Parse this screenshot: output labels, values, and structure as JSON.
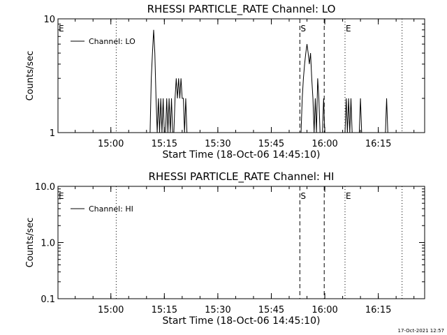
{
  "footer": {
    "timestamp": "17-Oct-2021 12:57"
  },
  "chart_data": [
    {
      "type": "line",
      "title": "RHESSI PARTICLE_RATE Channel: LO",
      "xlabel": "Start Time (18-Oct-06 14:45:10)",
      "ylabel": "Counts/sec",
      "y_scale": "log",
      "ylim": [
        1,
        10
      ],
      "xlim": [
        "14:45:10",
        "16:28:00"
      ],
      "x_ticks": [
        "15:00",
        "15:15",
        "15:30",
        "15:45",
        "16:00",
        "16:15"
      ],
      "y_ticks": [
        "1",
        "10"
      ],
      "legend": {
        "position": "top-left",
        "entries": [
          "Channel: LO"
        ]
      },
      "markers": [
        {
          "label": "E",
          "time": "14:45:10",
          "style": "none"
        },
        {
          "label": "",
          "time": "15:01:30",
          "style": "dotted"
        },
        {
          "label": "S",
          "time": "15:53:00",
          "style": "dashed"
        },
        {
          "label": "",
          "time": "15:59:50",
          "style": "dashed"
        },
        {
          "label": "E",
          "time": "16:05:40",
          "style": "dotted"
        },
        {
          "label": "",
          "time": "16:21:40",
          "style": "dotted"
        }
      ],
      "series": [
        {
          "name": "Channel: LO",
          "x": [
            "15:11:00",
            "15:11:20",
            "15:11:40",
            "15:12:00",
            "15:12:20",
            "15:12:40",
            "15:13:00",
            "15:13:20",
            "15:13:40",
            "15:14:00",
            "15:14:20",
            "15:14:40",
            "15:15:00",
            "15:15:20",
            "15:15:40",
            "15:16:00",
            "15:16:20",
            "15:16:40",
            "15:17:00",
            "15:17:20",
            "15:17:40",
            "15:18:00",
            "15:18:20",
            "15:18:40",
            "15:19:00",
            "15:19:20",
            "15:19:40",
            "15:20:00",
            "15:20:20",
            "15:20:40",
            "15:21:00",
            "15:21:20",
            "15:21:40",
            "15:22:00",
            "15:53:20",
            "15:53:40",
            "15:54:00",
            "15:54:20",
            "15:54:40",
            "15:55:00",
            "15:55:20",
            "15:55:40",
            "15:56:00",
            "15:56:20",
            "15:56:40",
            "15:57:00",
            "15:57:20",
            "15:57:40",
            "15:58:00",
            "15:58:20",
            "15:58:40",
            "15:59:00",
            "15:59:20",
            "15:59:40",
            "16:00:00",
            "16:00:20",
            "16:05:40",
            "16:06:00",
            "16:06:20",
            "16:06:40",
            "16:07:00",
            "16:07:20",
            "16:07:40",
            "16:08:00",
            "16:09:40",
            "16:10:00",
            "16:10:20",
            "16:10:40",
            "16:17:00",
            "16:17:20",
            "16:17:40",
            "16:18:00"
          ],
          "y": [
            1,
            3,
            5,
            8,
            5,
            2,
            1,
            2,
            1,
            2,
            1,
            2,
            1,
            1,
            2,
            1,
            2,
            1,
            2,
            1,
            1,
            2,
            3,
            2,
            3,
            2,
            3,
            2,
            2,
            1,
            2,
            1,
            1,
            1,
            1,
            2,
            3,
            4,
            5,
            6,
            5,
            4,
            5,
            3,
            2,
            1,
            2,
            1,
            3,
            2,
            1,
            1,
            1,
            2,
            1,
            1,
            1,
            2,
            1,
            2,
            1,
            2,
            1,
            1,
            1,
            2,
            1,
            1,
            1,
            2,
            1,
            1
          ]
        }
      ]
    },
    {
      "type": "line",
      "title": "RHESSI PARTICLE_RATE Channel: HI",
      "xlabel": "Start Time (18-Oct-06 14:45:10)",
      "ylabel": "Counts/sec",
      "y_scale": "log",
      "ylim": [
        0.1,
        10
      ],
      "xlim": [
        "14:45:10",
        "16:28:00"
      ],
      "x_ticks": [
        "15:00",
        "15:15",
        "15:30",
        "15:45",
        "16:00",
        "16:15"
      ],
      "y_ticks": [
        "0.1",
        "1.0",
        "10.0"
      ],
      "legend": {
        "position": "top-left",
        "entries": [
          "Channel: HI"
        ]
      },
      "markers": [
        {
          "label": "E",
          "time": "14:45:10",
          "style": "none"
        },
        {
          "label": "",
          "time": "15:01:30",
          "style": "dotted"
        },
        {
          "label": "S",
          "time": "15:53:00",
          "style": "dashed"
        },
        {
          "label": "",
          "time": "15:59:50",
          "style": "dashed"
        },
        {
          "label": "E",
          "time": "16:05:40",
          "style": "dotted"
        },
        {
          "label": "",
          "time": "16:21:40",
          "style": "dotted"
        }
      ],
      "series": [
        {
          "name": "Channel: HI",
          "x": [],
          "y": []
        }
      ]
    }
  ]
}
